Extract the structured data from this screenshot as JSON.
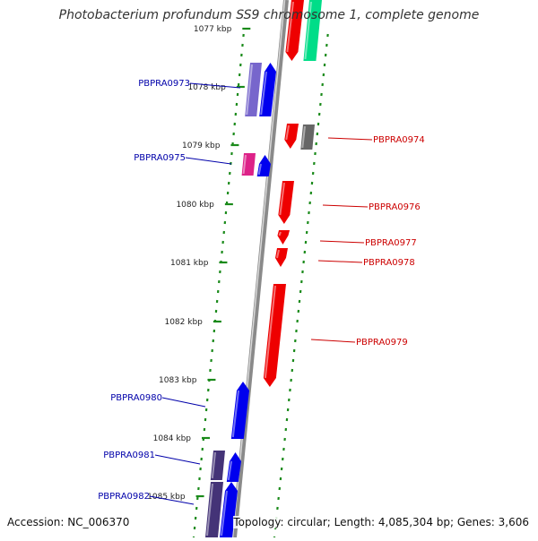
{
  "title": "Photobacterium profundum SS9 chromosome 1, complete genome",
  "accession": "Accession: NC_006370",
  "topology": "Topology: circular; Length: 4,085,304 bp; Genes: 3,606",
  "colors": {
    "backbone": "#8a8a8a",
    "forward_gene": "#0000ee",
    "reverse_gene": "#ee0000",
    "tick": "#1a8a1a",
    "left_label": "#0000aa",
    "right_label": "#cc0000",
    "teal_gene": "#00dd88",
    "gray_gene": "#666666",
    "purple_gene": "#7766cc",
    "magenta_gene": "#dd2288",
    "dark_purple_gene": "#443377"
  },
  "ruler": [
    {
      "label": "1077 kbp"
    },
    {
      "label": "1078 kbp"
    },
    {
      "label": "1079 kbp"
    },
    {
      "label": "1080 kbp"
    },
    {
      "label": "1081 kbp"
    },
    {
      "label": "1082 kbp"
    },
    {
      "label": "1083 kbp"
    },
    {
      "label": "1084 kbp"
    },
    {
      "label": "1085 kbp"
    }
  ],
  "left_labels": [
    "PBPRA0973",
    "PBPRA0975",
    "PBPRA0980",
    "PBPRA0981",
    "PBPRA0982"
  ],
  "right_labels": [
    "PBPRA0974",
    "PBPRA0976",
    "PBPRA0977",
    "PBPRA0978",
    "PBPRA0979"
  ]
}
